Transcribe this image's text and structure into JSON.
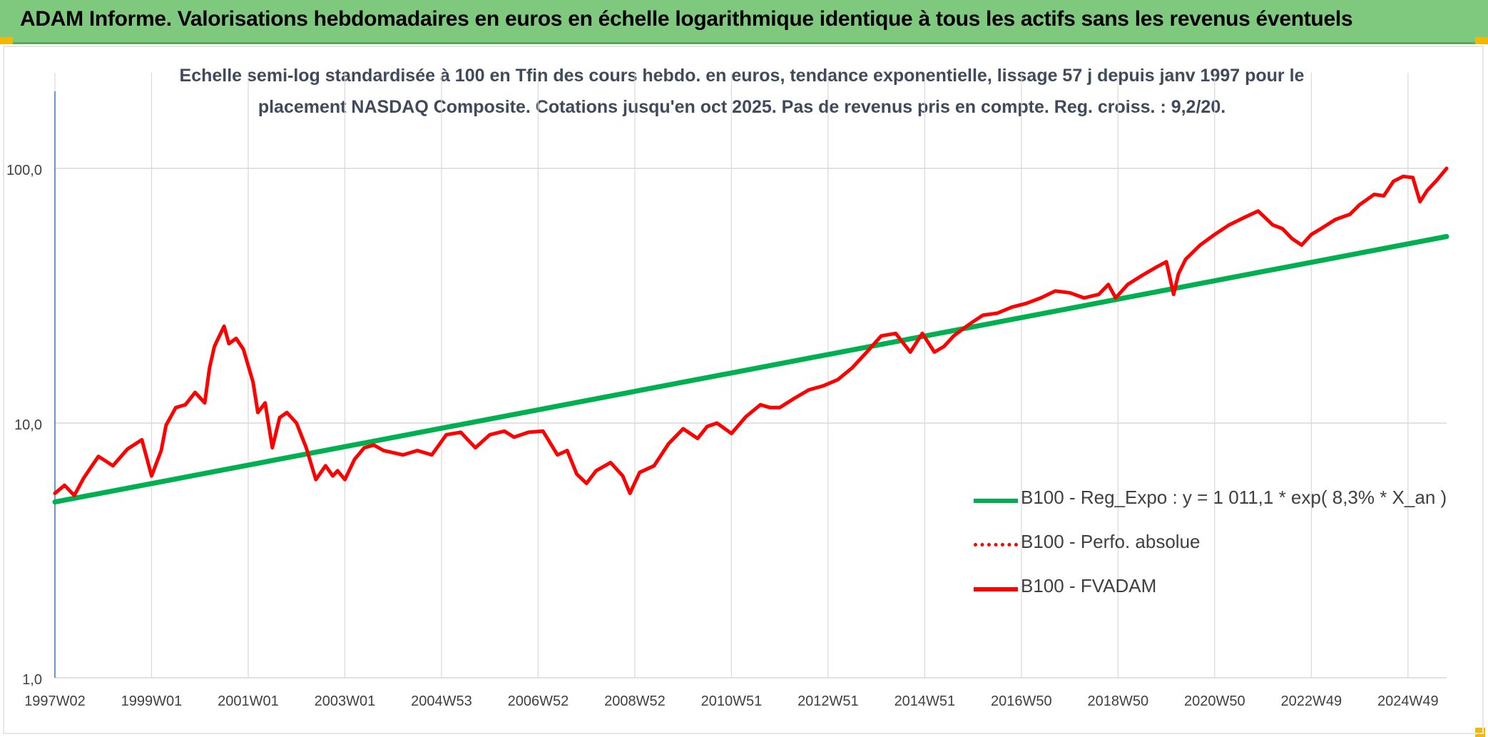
{
  "header": {
    "title": "ADAM Informe. Valorisations hebdomadaires en euros en échelle logarithmique identique à tous les actifs sans les revenus éventuels"
  },
  "colors": {
    "header_bg": "#7ec97e",
    "corner_accent": "#f5b800",
    "trend": "#00b050",
    "fvadam": "#ff0000",
    "grid": "#d9d9d9",
    "axis": "#4472c4"
  },
  "chart_data": {
    "type": "line",
    "title_lines": [
      "Echelle semi-log standardisée à 100 en Tfin des cours hebdo. en euros, tendance exponentielle, lissage 57 j depuis janv 1997 pour le",
      "placement NASDAQ Composite. Cotations jusqu'en oct 2025. Pas de revenus pris en compte. Reg. croiss. : 9,2/20."
    ],
    "y_scale": "log",
    "ylim": [
      1,
      100
    ],
    "y_ticks": [
      1,
      10,
      100
    ],
    "y_tick_labels": [
      "1,0",
      "10,0",
      "100,0"
    ],
    "xlim": [
      1997.0,
      2025.8
    ],
    "x_ticks": [
      1997.0,
      1999.0,
      2001.0,
      2003.0,
      2005.0,
      2007.0,
      2009.0,
      2011.0,
      2013.0,
      2015.0,
      2017.0,
      2019.0,
      2021.0,
      2023.0,
      2025.0
    ],
    "x_tick_labels": [
      "1997W02",
      "1999W01",
      "2001W01",
      "2003W01",
      "2004W53",
      "2006W52",
      "2008W52",
      "2010W51",
      "2012W51",
      "2014W51",
      "2016W50",
      "2018W50",
      "2020W50",
      "2022W49",
      "2024W49"
    ],
    "grid": "horizontal and vertical",
    "legend_position": "bottom-right",
    "legend": [
      {
        "label": "B100 - Reg_Expo : y = 1 011,1 * exp( 8,3% *  X_an )",
        "style": "solid",
        "color": "#00b050"
      },
      {
        "label": "B100 - Perfo. absolue",
        "style": "dotted",
        "color": "#ff0000"
      },
      {
        "label": "B100 - FVADAM",
        "style": "solid",
        "color": "#ff0000"
      }
    ],
    "series": [
      {
        "name": "B100 - Reg_Expo : y = 1 011,1 * exp( 8,3% *  X_an )",
        "style": "solid",
        "x": [
          1997.0,
          2025.8
        ],
        "y": [
          4.9,
          54
        ]
      },
      {
        "name": "B100 - FVADAM",
        "style": "solid",
        "x": [
          1997.0,
          1997.2,
          1997.4,
          1997.6,
          1997.9,
          1998.2,
          1998.5,
          1998.8,
          1999.0,
          1999.2,
          1999.3,
          1999.5,
          1999.7,
          1999.9,
          2000.1,
          2000.2,
          2000.3,
          2000.5,
          2000.6,
          2000.75,
          2000.9,
          2001.1,
          2001.2,
          2001.35,
          2001.5,
          2001.65,
          2001.8,
          2002.0,
          2002.2,
          2002.4,
          2002.6,
          2002.75,
          2002.85,
          2003.0,
          2003.2,
          2003.4,
          2003.6,
          2003.8,
          2004.2,
          2004.5,
          2004.8,
          2005.1,
          2005.4,
          2005.7,
          2006.0,
          2006.3,
          2006.5,
          2006.8,
          2007.1,
          2007.4,
          2007.6,
          2007.8,
          2008.0,
          2008.2,
          2008.5,
          2008.75,
          2008.9,
          2009.1,
          2009.4,
          2009.7,
          2010.0,
          2010.3,
          2010.5,
          2010.7,
          2011.0,
          2011.3,
          2011.6,
          2011.8,
          2012.0,
          2012.3,
          2012.6,
          2012.9,
          2013.2,
          2013.5,
          2013.8,
          2014.1,
          2014.4,
          2014.7,
          2014.95,
          2015.2,
          2015.4,
          2015.6,
          2015.8,
          2016.0,
          2016.2,
          2016.5,
          2016.8,
          2017.1,
          2017.4,
          2017.7,
          2018.0,
          2018.3,
          2018.6,
          2018.8,
          2018.95,
          2019.2,
          2019.5,
          2019.8,
          2020.0,
          2020.15,
          2020.25,
          2020.4,
          2020.7,
          2021.0,
          2021.3,
          2021.6,
          2021.9,
          2022.2,
          2022.4,
          2022.6,
          2022.8,
          2023.0,
          2023.2,
          2023.5,
          2023.8,
          2024.0,
          2024.3,
          2024.5,
          2024.7,
          2024.9,
          2025.1,
          2025.25,
          2025.4,
          2025.6,
          2025.8
        ],
        "y": [
          5.3,
          5.7,
          5.2,
          6.1,
          7.4,
          6.8,
          7.9,
          8.6,
          6.2,
          7.8,
          9.8,
          11.5,
          11.8,
          13.2,
          12.0,
          16.5,
          20.0,
          24.0,
          20.5,
          21.5,
          19.5,
          14.5,
          11.0,
          12.0,
          8.0,
          10.5,
          11.0,
          10.0,
          8.0,
          6.0,
          6.8,
          6.2,
          6.5,
          6.0,
          7.2,
          8.0,
          8.2,
          7.8,
          7.5,
          7.8,
          7.5,
          9.0,
          9.2,
          8.0,
          9.0,
          9.3,
          8.8,
          9.2,
          9.3,
          7.5,
          7.8,
          6.3,
          5.8,
          6.5,
          7.0,
          6.2,
          5.3,
          6.4,
          6.8,
          8.3,
          9.5,
          8.7,
          9.7,
          10.0,
          9.1,
          10.6,
          11.8,
          11.5,
          11.5,
          12.5,
          13.5,
          14.0,
          14.8,
          16.5,
          19.0,
          22.0,
          22.5,
          19.0,
          22.5,
          19.0,
          20.0,
          22.0,
          23.5,
          25.0,
          26.5,
          27.0,
          28.5,
          29.5,
          31.0,
          33.0,
          32.5,
          31.0,
          32.0,
          35.0,
          31.0,
          35.0,
          38.0,
          41.0,
          43.0,
          32.0,
          38.5,
          44.0,
          50.0,
          55.0,
          60.0,
          64.0,
          68.0,
          60.0,
          58.0,
          53.0,
          50.0,
          55.0,
          58.0,
          63.0,
          66.0,
          72.0,
          79.0,
          78.0,
          89.0,
          93.0,
          92.0,
          74.0,
          82.0,
          90.0,
          100.0
        ]
      }
    ]
  }
}
